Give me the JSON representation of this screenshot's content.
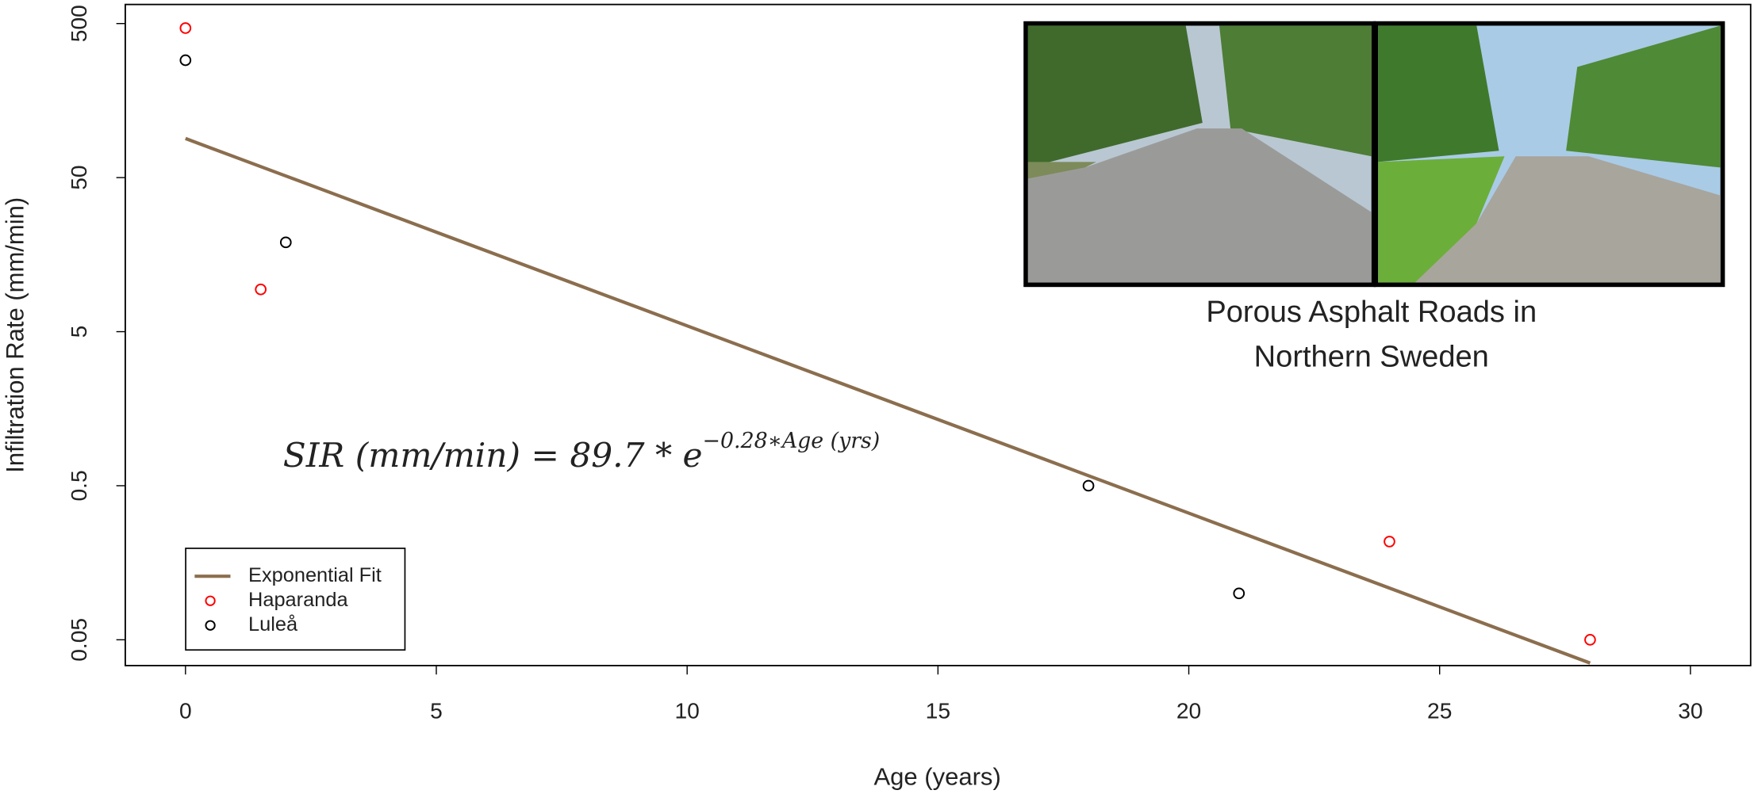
{
  "chart_data": {
    "type": "scatter",
    "log_y": true,
    "xlabel": "Age (years)",
    "ylabel": "Infiltration Rate (mm/min)",
    "xlim": [
      -1.2,
      31.2
    ],
    "ylim": [
      0.034,
      665
    ],
    "xticks": [
      0,
      5,
      10,
      15,
      20,
      25,
      30
    ],
    "yticks": [
      0.05,
      0.5,
      5,
      50,
      500
    ],
    "legend": "bottom-left",
    "annotations": [
      "SIR (mm/min) = 89.7 * e",
      "−0.28∗Age (yrs)"
    ],
    "inset_caption": [
      "Porous Asphalt Roads in",
      "Northern Sweden"
    ],
    "series": [
      {
        "name": "Exponential Fit",
        "type": "line",
        "color": "#8b6e4e",
        "x": [
          0,
          1,
          2,
          3,
          4,
          5,
          6,
          7,
          8,
          9,
          10,
          11,
          12,
          13,
          14,
          15,
          16,
          17,
          18,
          19,
          20,
          21,
          22,
          23,
          24,
          25,
          26,
          27,
          28
        ],
        "values": [
          89.7,
          67.79,
          51.24,
          38.73,
          29.27,
          22.12,
          16.72,
          12.64,
          9.551,
          7.219,
          5.456,
          4.123,
          3.116,
          2.355,
          1.78,
          1.345,
          1.017,
          0.7686,
          0.5809,
          0.439,
          0.3318,
          0.2508,
          0.1895,
          0.1432,
          0.1083,
          0.0818,
          0.0618,
          0.0467,
          0.0353
        ]
      },
      {
        "name": "Haparanda",
        "type": "scatter",
        "color": "#ff0000",
        "x": [
          0,
          1.5,
          24,
          28
        ],
        "values": [
          467,
          9.4,
          0.217,
          0.05
        ]
      },
      {
        "name": "Luleå",
        "type": "scatter",
        "color": "#000000",
        "x": [
          0,
          2,
          18,
          21
        ],
        "values": [
          289,
          19,
          0.5,
          0.1
        ]
      }
    ]
  }
}
